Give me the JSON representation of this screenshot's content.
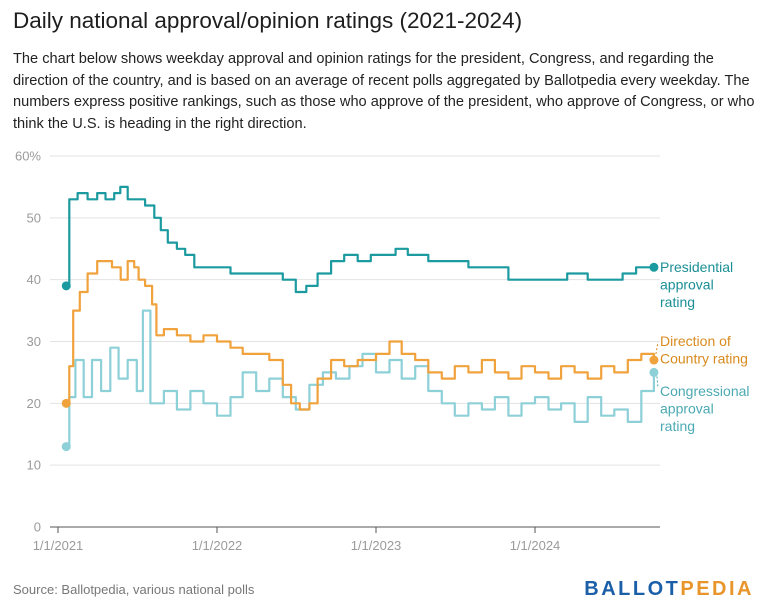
{
  "chart_data": {
    "type": "line",
    "title": "Daily national approval/opinion ratings (2021-2024)",
    "subtitle": "The chart below shows weekday approval and opinion ratings for the president, Congress, and regarding the direction of the country, and is based on an average of recent polls aggregated by Ballotpedia every weekday. The numbers express positive rankings, such as those who approve of the president, who approve of Congress, or who think the U.S. is heading in the right direction.",
    "source": "Source: Ballotpedia, various national polls",
    "brand": [
      "BALLOT",
      "PEDIA"
    ],
    "xlabel": "",
    "ylabel": "",
    "x_ticks": [
      "1/1/2021",
      "1/1/2022",
      "1/1/2023",
      "1/1/2024"
    ],
    "y_ticks": [
      "0",
      "10",
      "20",
      "30",
      "40",
      "50",
      "60%"
    ],
    "ylim": [
      0,
      60
    ],
    "grid": true,
    "series": [
      {
        "name": "Presidential approval rating",
        "label_lines": [
          "Presidential",
          "approval",
          "rating"
        ],
        "color": "#1b9aa0",
        "points": [
          [
            "2021-01-20",
            39
          ],
          [
            "2021-01-27",
            53
          ],
          [
            "2021-02-15",
            54
          ],
          [
            "2021-03-10",
            53
          ],
          [
            "2021-04-01",
            54
          ],
          [
            "2021-04-20",
            53
          ],
          [
            "2021-05-10",
            54
          ],
          [
            "2021-05-24",
            55
          ],
          [
            "2021-06-10",
            53
          ],
          [
            "2021-07-01",
            53
          ],
          [
            "2021-07-20",
            52
          ],
          [
            "2021-08-10",
            50
          ],
          [
            "2021-08-25",
            48
          ],
          [
            "2021-09-10",
            46
          ],
          [
            "2021-10-01",
            45
          ],
          [
            "2021-10-20",
            44
          ],
          [
            "2021-11-10",
            42
          ],
          [
            "2021-12-01",
            42
          ],
          [
            "2022-01-01",
            42
          ],
          [
            "2022-02-01",
            41
          ],
          [
            "2022-03-01",
            41
          ],
          [
            "2022-04-01",
            41
          ],
          [
            "2022-05-01",
            41
          ],
          [
            "2022-06-01",
            40
          ],
          [
            "2022-07-01",
            38
          ],
          [
            "2022-07-25",
            39
          ],
          [
            "2022-08-20",
            41
          ],
          [
            "2022-09-20",
            43
          ],
          [
            "2022-10-20",
            44
          ],
          [
            "2022-11-20",
            43
          ],
          [
            "2022-12-20",
            44
          ],
          [
            "2023-01-20",
            44
          ],
          [
            "2023-02-15",
            45
          ],
          [
            "2023-03-15",
            44
          ],
          [
            "2023-05-01",
            43
          ],
          [
            "2023-06-15",
            43
          ],
          [
            "2023-08-01",
            42
          ],
          [
            "2023-09-15",
            42
          ],
          [
            "2023-11-01",
            40
          ],
          [
            "2023-12-15",
            40
          ],
          [
            "2024-02-01",
            40
          ],
          [
            "2024-03-15",
            41
          ],
          [
            "2024-05-01",
            40
          ],
          [
            "2024-06-15",
            40
          ],
          [
            "2024-07-20",
            41
          ],
          [
            "2024-08-20",
            42
          ],
          [
            "2024-09-30",
            42
          ]
        ]
      },
      {
        "name": "Direction of Country rating",
        "label_lines": [
          "Direction of",
          "Country rating"
        ],
        "color": "#f0a23c",
        "points": [
          [
            "2021-01-20",
            20
          ],
          [
            "2021-01-27",
            26
          ],
          [
            "2021-02-05",
            35
          ],
          [
            "2021-02-20",
            38
          ],
          [
            "2021-03-10",
            41
          ],
          [
            "2021-04-01",
            43
          ],
          [
            "2021-04-15",
            43
          ],
          [
            "2021-05-05",
            42
          ],
          [
            "2021-05-25",
            40
          ],
          [
            "2021-06-10",
            43
          ],
          [
            "2021-06-25",
            42
          ],
          [
            "2021-07-05",
            40
          ],
          [
            "2021-07-20",
            39
          ],
          [
            "2021-08-05",
            36
          ],
          [
            "2021-08-15",
            31
          ],
          [
            "2021-09-01",
            32
          ],
          [
            "2021-10-01",
            31
          ],
          [
            "2021-11-01",
            30
          ],
          [
            "2021-12-01",
            31
          ],
          [
            "2022-01-01",
            30
          ],
          [
            "2022-02-01",
            29
          ],
          [
            "2022-03-01",
            28
          ],
          [
            "2022-04-01",
            28
          ],
          [
            "2022-05-01",
            27
          ],
          [
            "2022-06-01",
            23
          ],
          [
            "2022-06-20",
            20
          ],
          [
            "2022-07-10",
            19
          ],
          [
            "2022-08-01",
            20
          ],
          [
            "2022-08-20",
            24
          ],
          [
            "2022-09-20",
            27
          ],
          [
            "2022-10-20",
            26
          ],
          [
            "2022-11-20",
            27
          ],
          [
            "2023-01-01",
            28
          ],
          [
            "2023-02-01",
            30
          ],
          [
            "2023-03-01",
            28
          ],
          [
            "2023-04-01",
            27
          ],
          [
            "2023-05-01",
            25
          ],
          [
            "2023-06-01",
            24
          ],
          [
            "2023-07-01",
            26
          ],
          [
            "2023-08-01",
            25
          ],
          [
            "2023-09-01",
            27
          ],
          [
            "2023-10-01",
            25
          ],
          [
            "2023-11-01",
            24
          ],
          [
            "2023-12-01",
            26
          ],
          [
            "2024-01-01",
            25
          ],
          [
            "2024-02-01",
            24
          ],
          [
            "2024-03-01",
            26
          ],
          [
            "2024-04-01",
            25
          ],
          [
            "2024-05-01",
            24
          ],
          [
            "2024-06-01",
            26
          ],
          [
            "2024-07-01",
            25
          ],
          [
            "2024-08-01",
            27
          ],
          [
            "2024-09-01",
            28
          ],
          [
            "2024-09-30",
            27
          ]
        ]
      },
      {
        "name": "Congressional approval rating",
        "label_lines": [
          "Congressional",
          "approval",
          "rating"
        ],
        "color": "#8dd0d8",
        "points": [
          [
            "2021-01-20",
            13
          ],
          [
            "2021-01-27",
            21
          ],
          [
            "2021-02-10",
            27
          ],
          [
            "2021-03-01",
            21
          ],
          [
            "2021-03-20",
            27
          ],
          [
            "2021-04-10",
            22
          ],
          [
            "2021-05-01",
            29
          ],
          [
            "2021-05-20",
            24
          ],
          [
            "2021-06-10",
            27
          ],
          [
            "2021-07-01",
            22
          ],
          [
            "2021-07-15",
            35
          ],
          [
            "2021-08-01",
            20
          ],
          [
            "2021-09-01",
            22
          ],
          [
            "2021-10-01",
            19
          ],
          [
            "2021-11-01",
            22
          ],
          [
            "2021-12-01",
            20
          ],
          [
            "2022-01-01",
            18
          ],
          [
            "2022-02-01",
            21
          ],
          [
            "2022-03-01",
            25
          ],
          [
            "2022-04-01",
            22
          ],
          [
            "2022-05-01",
            24
          ],
          [
            "2022-06-01",
            21
          ],
          [
            "2022-07-01",
            19
          ],
          [
            "2022-08-01",
            23
          ],
          [
            "2022-09-01",
            25
          ],
          [
            "2022-10-01",
            24
          ],
          [
            "2022-11-01",
            26
          ],
          [
            "2022-12-01",
            28
          ],
          [
            "2023-01-01",
            25
          ],
          [
            "2023-02-01",
            27
          ],
          [
            "2023-03-01",
            24
          ],
          [
            "2023-04-01",
            26
          ],
          [
            "2023-05-01",
            22
          ],
          [
            "2023-06-01",
            20
          ],
          [
            "2023-07-01",
            18
          ],
          [
            "2023-08-01",
            20
          ],
          [
            "2023-09-01",
            19
          ],
          [
            "2023-10-01",
            21
          ],
          [
            "2023-11-01",
            18
          ],
          [
            "2023-12-01",
            20
          ],
          [
            "2024-01-01",
            21
          ],
          [
            "2024-02-01",
            19
          ],
          [
            "2024-03-01",
            20
          ],
          [
            "2024-04-01",
            17
          ],
          [
            "2024-05-01",
            21
          ],
          [
            "2024-06-01",
            18
          ],
          [
            "2024-07-01",
            19
          ],
          [
            "2024-08-01",
            17
          ],
          [
            "2024-09-01",
            22
          ],
          [
            "2024-09-30",
            25
          ]
        ]
      }
    ]
  }
}
